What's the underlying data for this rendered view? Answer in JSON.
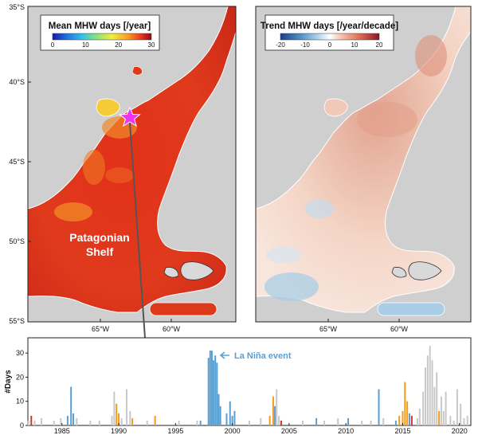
{
  "maps": [
    {
      "id": "mean",
      "title": "Mean MHW days [/year]",
      "colorbar": {
        "ticks": [
          "0",
          "10",
          "20",
          "30"
        ],
        "colors": [
          "#1a1aa8",
          "#1f6fe0",
          "#32c4e8",
          "#8ee27a",
          "#f3ec3c",
          "#f7a52a",
          "#e8331d",
          "#8c0b12"
        ]
      },
      "lat_ticks": [
        "35°S",
        "40°S",
        "45°S",
        "50°S",
        "55°S"
      ],
      "lon_ticks": [
        "65°W",
        "60°W"
      ],
      "label": {
        "line1": "Patagonian",
        "line2": "Shelf"
      }
    },
    {
      "id": "trend",
      "title": "Trend MHW days [/year/decade]",
      "colorbar": {
        "ticks": [
          "-20",
          "-10",
          "0",
          "10",
          "20"
        ],
        "colors": [
          "#1b3f8a",
          "#4d8fc4",
          "#bcdcef",
          "#ffffff",
          "#f7c9b4",
          "#df6f55",
          "#8e1521"
        ]
      },
      "lon_ticks": [
        "65°W",
        "60°W"
      ]
    }
  ],
  "chart_data": {
    "type": "bar",
    "ylabel": "#Days",
    "ylim": [
      0,
      35
    ],
    "yticks": [
      "0",
      "10",
      "20",
      "30"
    ],
    "xlim": [
      1982,
      2021
    ],
    "xticks": [
      "1985",
      "1990",
      "1995",
      "2000",
      "2005",
      "2010",
      "2015",
      "2020"
    ],
    "annotation": "La Niña event",
    "colors": {
      "grey": "#c8c8c8",
      "blue": "#5a9fd4",
      "orange": "#f29b1d",
      "red": "#d6322b"
    },
    "bars": [
      {
        "x": 1982.05,
        "y": 2,
        "c": "grey"
      },
      {
        "x": 1982.3,
        "y": 4,
        "c": "red"
      },
      {
        "x": 1982.6,
        "y": 2,
        "c": "grey"
      },
      {
        "x": 1983.2,
        "y": 3,
        "c": "grey"
      },
      {
        "x": 1984.3,
        "y": 2,
        "c": "grey"
      },
      {
        "x": 1984.9,
        "y": 3,
        "c": "grey"
      },
      {
        "x": 1985.5,
        "y": 4,
        "c": "blue"
      },
      {
        "x": 1985.8,
        "y": 16,
        "c": "blue"
      },
      {
        "x": 1986.0,
        "y": 5,
        "c": "blue"
      },
      {
        "x": 1986.3,
        "y": 3,
        "c": "grey"
      },
      {
        "x": 1987.5,
        "y": 2,
        "c": "grey"
      },
      {
        "x": 1988.3,
        "y": 2,
        "c": "grey"
      },
      {
        "x": 1989.4,
        "y": 4,
        "c": "grey"
      },
      {
        "x": 1989.6,
        "y": 14,
        "c": "grey"
      },
      {
        "x": 1989.8,
        "y": 9,
        "c": "orange"
      },
      {
        "x": 1990.0,
        "y": 5,
        "c": "orange"
      },
      {
        "x": 1990.25,
        "y": 3,
        "c": "grey"
      },
      {
        "x": 1990.7,
        "y": 15,
        "c": "grey"
      },
      {
        "x": 1991.0,
        "y": 6,
        "c": "grey"
      },
      {
        "x": 1991.2,
        "y": 3,
        "c": "orange"
      },
      {
        "x": 1992.5,
        "y": 2,
        "c": "grey"
      },
      {
        "x": 1993.2,
        "y": 4,
        "c": "orange"
      },
      {
        "x": 1995.3,
        "y": 2,
        "c": "grey"
      },
      {
        "x": 1996.9,
        "y": 2,
        "c": "grey"
      },
      {
        "x": 1997.2,
        "y": 2,
        "c": "blue"
      },
      {
        "x": 1997.9,
        "y": 28,
        "c": "blue"
      },
      {
        "x": 1998.05,
        "y": 31,
        "c": "blue"
      },
      {
        "x": 1998.2,
        "y": 31,
        "c": "blue"
      },
      {
        "x": 1998.35,
        "y": 27,
        "c": "blue"
      },
      {
        "x": 1998.5,
        "y": 29,
        "c": "blue"
      },
      {
        "x": 1998.65,
        "y": 26,
        "c": "blue"
      },
      {
        "x": 1998.8,
        "y": 13,
        "c": "blue"
      },
      {
        "x": 1998.95,
        "y": 8,
        "c": "blue"
      },
      {
        "x": 1999.5,
        "y": 5,
        "c": "blue"
      },
      {
        "x": 1999.8,
        "y": 10,
        "c": "blue"
      },
      {
        "x": 2000.0,
        "y": 4,
        "c": "blue"
      },
      {
        "x": 2000.2,
        "y": 6,
        "c": "blue"
      },
      {
        "x": 2001.5,
        "y": 2,
        "c": "grey"
      },
      {
        "x": 2002.5,
        "y": 3,
        "c": "grey"
      },
      {
        "x": 2003.3,
        "y": 4,
        "c": "orange"
      },
      {
        "x": 2003.6,
        "y": 12,
        "c": "orange"
      },
      {
        "x": 2003.75,
        "y": 8,
        "c": "blue"
      },
      {
        "x": 2003.9,
        "y": 15,
        "c": "grey"
      },
      {
        "x": 2004.1,
        "y": 4,
        "c": "grey"
      },
      {
        "x": 2004.3,
        "y": 2,
        "c": "red"
      },
      {
        "x": 2006.2,
        "y": 2,
        "c": "grey"
      },
      {
        "x": 2007.4,
        "y": 3,
        "c": "blue"
      },
      {
        "x": 2008.1,
        "y": 2,
        "c": "grey"
      },
      {
        "x": 2009.3,
        "y": 3,
        "c": "grey"
      },
      {
        "x": 2010.2,
        "y": 3,
        "c": "blue"
      },
      {
        "x": 2011.4,
        "y": 2,
        "c": "grey"
      },
      {
        "x": 2012.2,
        "y": 2,
        "c": "grey"
      },
      {
        "x": 2012.9,
        "y": 15,
        "c": "blue"
      },
      {
        "x": 2013.3,
        "y": 3,
        "c": "grey"
      },
      {
        "x": 2014.4,
        "y": 2,
        "c": "blue"
      },
      {
        "x": 2014.7,
        "y": 4,
        "c": "orange"
      },
      {
        "x": 2015.0,
        "y": 6,
        "c": "orange"
      },
      {
        "x": 2015.2,
        "y": 18,
        "c": "orange"
      },
      {
        "x": 2015.4,
        "y": 10,
        "c": "orange"
      },
      {
        "x": 2015.6,
        "y": 5,
        "c": "blue"
      },
      {
        "x": 2015.8,
        "y": 4,
        "c": "red"
      },
      {
        "x": 2016.3,
        "y": 3,
        "c": "grey"
      },
      {
        "x": 2016.5,
        "y": 7,
        "c": "grey"
      },
      {
        "x": 2016.8,
        "y": 14,
        "c": "grey"
      },
      {
        "x": 2017.0,
        "y": 24,
        "c": "grey"
      },
      {
        "x": 2017.2,
        "y": 29,
        "c": "grey"
      },
      {
        "x": 2017.4,
        "y": 33,
        "c": "grey"
      },
      {
        "x": 2017.6,
        "y": 27,
        "c": "grey"
      },
      {
        "x": 2017.8,
        "y": 16,
        "c": "grey"
      },
      {
        "x": 2018.0,
        "y": 22,
        "c": "grey"
      },
      {
        "x": 2018.2,
        "y": 6,
        "c": "orange"
      },
      {
        "x": 2018.4,
        "y": 12,
        "c": "grey"
      },
      {
        "x": 2018.6,
        "y": 6,
        "c": "grey"
      },
      {
        "x": 2018.8,
        "y": 14,
        "c": "grey"
      },
      {
        "x": 2019.2,
        "y": 4,
        "c": "grey"
      },
      {
        "x": 2019.5,
        "y": 2,
        "c": "grey"
      },
      {
        "x": 2019.8,
        "y": 15,
        "c": "grey"
      },
      {
        "x": 2020.1,
        "y": 9,
        "c": "grey"
      },
      {
        "x": 2020.4,
        "y": 3,
        "c": "grey"
      },
      {
        "x": 2020.7,
        "y": 4,
        "c": "grey"
      }
    ]
  }
}
